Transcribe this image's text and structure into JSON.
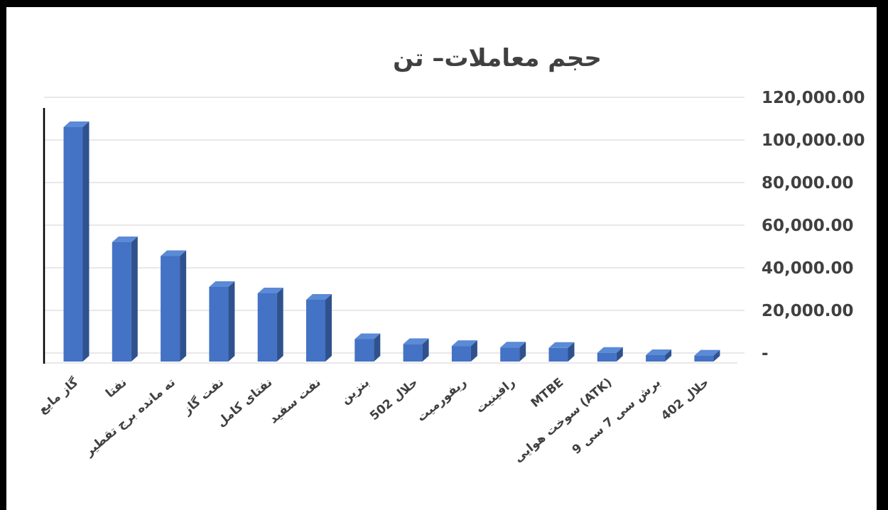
{
  "chart_data": {
    "type": "bar",
    "title": "حجم معاملات– تن",
    "categories": [
      "گاز مایع",
      "نفتا",
      "ته مانده برج تقطیر",
      "نفت گاز",
      "نفتای کامل",
      "نفت سفید",
      "بنزین",
      "حلال 502",
      "ریفورمیت",
      "رافینیت",
      "MTBE",
      "سوخت هوایی (ATK)",
      "برش سی 7 سی 9",
      "حلال 402"
    ],
    "values": [
      108000,
      54000,
      47500,
      33000,
      30000,
      27000,
      8500,
      6200,
      5300,
      4600,
      4400,
      2100,
      1000,
      800
    ],
    "ylim": [
      0,
      120000
    ],
    "yticks": [
      "-",
      "20,000.00",
      "40,000.00",
      "60,000.00",
      "80,000.00",
      "100,000.00",
      "120,000.00"
    ],
    "ytick_values": [
      0,
      20000,
      40000,
      60000,
      80000,
      100000,
      120000
    ],
    "y_axis_side": "right",
    "grid": true,
    "bar_color": "#4472C4",
    "bar_side_color": "#2F528F",
    "bar_top_color": "#5B8AD6",
    "grid_color": "#D9D9D9"
  }
}
